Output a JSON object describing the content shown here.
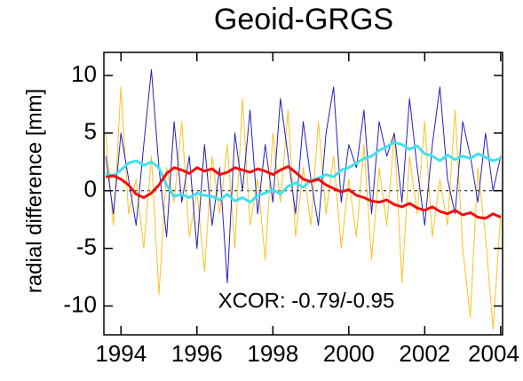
{
  "chart_data": {
    "type": "line",
    "title": "Geoid-GRGS",
    "ylabel": "radial difference [mm]",
    "annotation": "XCOR: -0.79/-0.95",
    "x": [
      1993.6,
      1993.8,
      1994.0,
      1994.2,
      1994.4,
      1994.6,
      1994.8,
      1995.0,
      1995.2,
      1995.4,
      1995.6,
      1995.8,
      1996.0,
      1996.2,
      1996.4,
      1996.6,
      1996.8,
      1997.0,
      1997.2,
      1997.4,
      1997.6,
      1997.8,
      1998.0,
      1998.2,
      1998.4,
      1998.6,
      1998.8,
      1999.0,
      1999.2,
      1999.4,
      1999.6,
      1999.8,
      2000.0,
      2000.2,
      2000.4,
      2000.6,
      2000.8,
      2001.0,
      2001.2,
      2001.4,
      2001.6,
      2001.8,
      2002.0,
      2002.2,
      2002.4,
      2002.6,
      2002.8,
      2003.0,
      2003.2,
      2003.4,
      2003.6,
      2003.8,
      2004.0
    ],
    "series": [
      {
        "color": "#ffc020",
        "width": 1,
        "values": [
          5,
          -3,
          9,
          -2,
          1,
          -5,
          3,
          -9,
          2,
          -1,
          6,
          -4,
          0,
          -7,
          3,
          -2,
          4,
          -5,
          8,
          -3,
          1,
          -6,
          5,
          -1,
          7,
          -4,
          2,
          -3,
          6,
          -2,
          3,
          -5,
          1,
          -4,
          4,
          -6,
          2,
          -3,
          5,
          -8,
          3,
          -2,
          6,
          -4,
          1,
          -3,
          7,
          -5,
          -11,
          2,
          -4,
          -12,
          -2
        ]
      },
      {
        "color": "#2020c0",
        "width": 1,
        "values": [
          3,
          -2,
          5,
          1,
          -3,
          4,
          10.5,
          2,
          -4,
          6,
          -1,
          3,
          -5,
          4,
          -3,
          2,
          -8,
          5,
          0,
          7,
          -2,
          4,
          -1,
          8,
          3,
          -2,
          6,
          1,
          -3,
          5,
          9,
          -1,
          4,
          2,
          7,
          -2,
          6,
          3,
          5,
          -1,
          8,
          2,
          -3,
          4,
          9,
          1,
          -2,
          6,
          3,
          -1,
          5,
          0,
          3
        ]
      },
      {
        "color": "#40e0f0",
        "width": 3,
        "values": [
          1.5,
          1.3,
          1.8,
          2.4,
          2.6,
          2.2,
          2.5,
          2.0,
          0.5,
          -0.5,
          -0.3,
          -0.6,
          -0.2,
          -0.4,
          -0.5,
          -0.8,
          -0.3,
          -0.9,
          -0.6,
          -1.0,
          -0.4,
          -0.2,
          0.1,
          -0.3,
          0.4,
          0.7,
          0.3,
          0.9,
          1.1,
          1.4,
          1.2,
          1.8,
          2.0,
          2.4,
          2.8,
          3.0,
          3.5,
          3.8,
          4.2,
          4.0,
          3.6,
          3.9,
          3.2,
          3.0,
          2.6,
          3.1,
          2.7,
          3.0,
          2.8,
          3.2,
          2.9,
          2.6,
          2.8
        ]
      },
      {
        "color": "#f01010",
        "width": 3,
        "values": [
          1.2,
          1.3,
          1.0,
          0.5,
          -0.3,
          -0.6,
          -0.2,
          0.5,
          1.5,
          2.0,
          1.8,
          1.5,
          2.0,
          1.7,
          1.9,
          1.4,
          1.6,
          2.0,
          1.8,
          1.6,
          1.9,
          1.7,
          1.4,
          1.8,
          2.1,
          1.6,
          1.0,
          0.8,
          1.0,
          0.5,
          0.2,
          -0.1,
          0.1,
          -0.4,
          -0.6,
          -0.9,
          -1.0,
          -0.8,
          -1.2,
          -1.4,
          -1.1,
          -1.5,
          -1.7,
          -1.4,
          -1.8,
          -2.0,
          -1.7,
          -2.1,
          -1.9,
          -2.3,
          -2.4,
          -2.0,
          -2.3
        ]
      }
    ],
    "xlim": [
      1993.55,
      2004.05
    ],
    "xticks": [
      1994,
      1996,
      1998,
      2000,
      2002,
      2004
    ],
    "ylim": [
      -12.5,
      12
    ],
    "yticks": [
      -10,
      -5,
      0,
      5,
      10
    ],
    "zero_line": true
  }
}
